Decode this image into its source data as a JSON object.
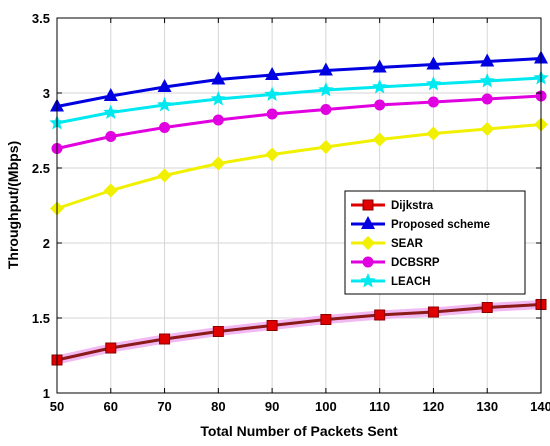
{
  "chart_data": {
    "type": "line",
    "title": "",
    "xlabel": "Total Number of Packets Sent",
    "ylabel": "Throughput/(Mbps)",
    "xlim": [
      50,
      140
    ],
    "ylim": [
      1,
      3.5
    ],
    "x": [
      50,
      60,
      70,
      80,
      90,
      100,
      110,
      120,
      130,
      140
    ],
    "xticks": [
      "50",
      "60",
      "70",
      "80",
      "90",
      "100",
      "110",
      "120",
      "130",
      "140"
    ],
    "yticks": [
      "1",
      "1.5",
      "2",
      "2.5",
      "3",
      "3.5"
    ],
    "grid": true,
    "legend_position": "center-right",
    "series": [
      {
        "name": "Dijkstra",
        "color": "#e00000",
        "marker": "square",
        "values": [
          1.22,
          1.3,
          1.36,
          1.41,
          1.45,
          1.49,
          1.52,
          1.54,
          1.57,
          1.59
        ]
      },
      {
        "name": "Proposed scheme",
        "color": "#0000e0",
        "marker": "triangle",
        "values": [
          2.91,
          2.98,
          3.04,
          3.09,
          3.12,
          3.15,
          3.17,
          3.19,
          3.21,
          3.23
        ]
      },
      {
        "name": "SEAR",
        "color": "#f0f000",
        "marker": "diamond",
        "values": [
          2.23,
          2.35,
          2.45,
          2.53,
          2.59,
          2.64,
          2.69,
          2.73,
          2.76,
          2.79
        ]
      },
      {
        "name": "DCBSRP",
        "color": "#e000e0",
        "marker": "circle",
        "values": [
          2.63,
          2.71,
          2.77,
          2.82,
          2.86,
          2.89,
          2.92,
          2.94,
          2.96,
          2.98
        ]
      },
      {
        "name": "LEACH",
        "color": "#00e8f0",
        "marker": "star",
        "values": [
          2.8,
          2.87,
          2.92,
          2.96,
          2.99,
          3.02,
          3.04,
          3.06,
          3.08,
          3.1
        ]
      }
    ]
  }
}
